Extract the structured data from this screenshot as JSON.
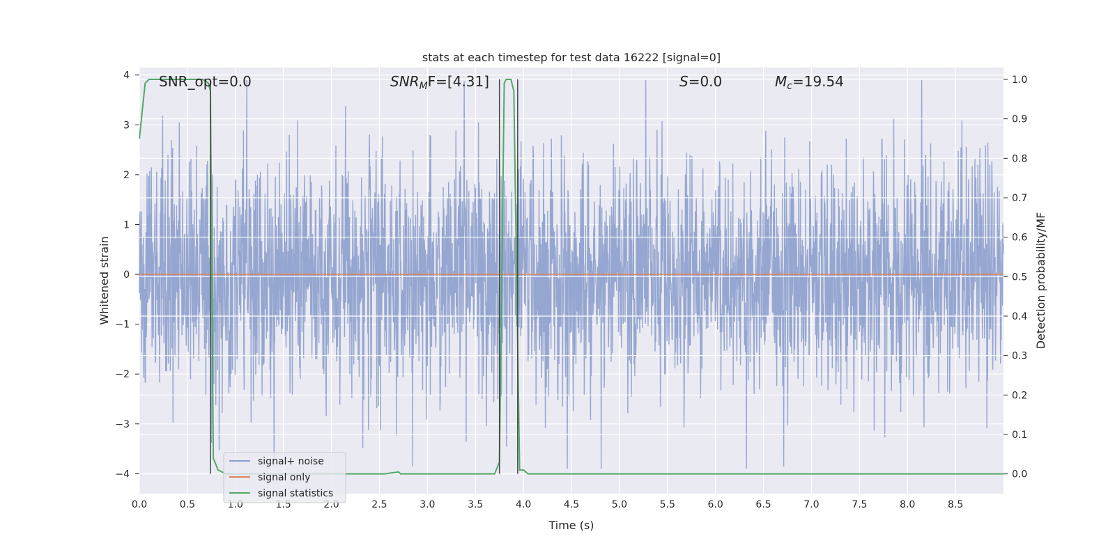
{
  "chart_data": {
    "type": "line",
    "title": "stats at each timestep for test data 16222 [signal=0]",
    "xlabel": "Time (s)",
    "ylabel": "Whitened strain",
    "y2label": "Detection probability/MF",
    "xlim": [
      0.0,
      9.0
    ],
    "ylim": [
      -4.4,
      4.15
    ],
    "y2lim": [
      -0.05,
      1.03
    ],
    "x_ticks": [
      "0.0",
      "0.5",
      "1.0",
      "1.5",
      "2.0",
      "2.5",
      "3.0",
      "3.5",
      "4.0",
      "4.5",
      "5.0",
      "5.5",
      "6.0",
      "6.5",
      "7.0",
      "7.5",
      "8.0",
      "8.5"
    ],
    "y_ticks": [
      "4",
      "3",
      "2",
      "1",
      "0",
      "−1",
      "−2",
      "−3",
      "−4"
    ],
    "y2_ticks": [
      "1.0",
      "0.9",
      "0.8",
      "0.7",
      "0.6",
      "0.5",
      "0.4",
      "0.3",
      "0.2",
      "0.1",
      "0.0"
    ],
    "grid": true,
    "annotations": {
      "snr_opt": "SNR_opt=0.0",
      "snr_mf_sym": "SNR",
      "snr_mf_sub": "M",
      "snr_mf_rest": "F=[4.31]",
      "s_sym": "S",
      "s_rest": "=0.0",
      "mc_sym": "M",
      "mc_sub": "c",
      "mc_rest": "=19.54"
    },
    "legend": {
      "placement": "lower-left",
      "entries": [
        "signal+ noise",
        "signal only",
        "signal statistics"
      ]
    },
    "series": [
      {
        "name": "signal+ noise",
        "description_kind": "noise",
        "envelope": 2.6,
        "peak": 3.9
      },
      {
        "name": "signal only",
        "values_constant": 0.0
      },
      {
        "name": "signal statistics",
        "x": [
          0.0,
          0.06,
          0.1,
          0.2,
          0.5,
          0.66,
          0.72,
          0.74,
          0.77,
          0.82,
          0.9,
          1.0,
          2.5,
          2.55,
          2.7,
          2.72,
          3.7,
          3.75,
          3.8,
          3.82,
          3.87,
          3.9,
          3.96,
          4.0,
          4.05,
          4.1,
          9.0
        ],
        "values": [
          0.85,
          0.99,
          1.0,
          1.0,
          1.0,
          1.0,
          0.99,
          0.97,
          0.04,
          0.01,
          0.0,
          0.0,
          0.0,
          0.0,
          0.005,
          0.0,
          0.0,
          0.03,
          0.99,
          1.0,
          1.0,
          0.97,
          0.01,
          0.01,
          0.0,
          0.0,
          0.0
        ]
      }
    ],
    "vertical_lines_x": [
      0.74,
      3.75,
      3.94
    ],
    "colors": {
      "noise": "#8c9fcc",
      "signal": "#dd8452",
      "stats": "#55a868",
      "plot_bg": "#eaeaf2",
      "grid": "#ffffff",
      "vline": "#444444"
    }
  }
}
